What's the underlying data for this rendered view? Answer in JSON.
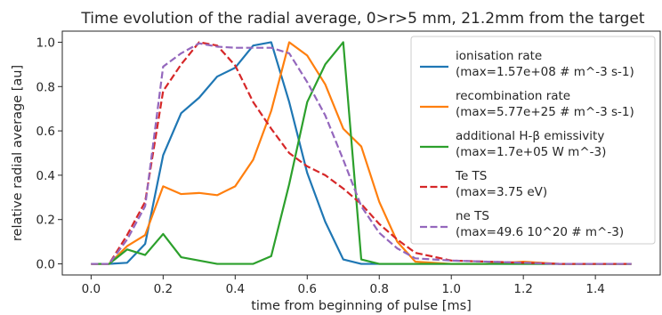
{
  "chart_data": {
    "type": "line",
    "title": "Time evolution of the radial average, 0>r>5 mm, 21.2mm from the target",
    "xlabel": "time from beginning of pulse [ms]",
    "ylabel": "relative radial average [au]",
    "xlim": [
      -0.08,
      1.58
    ],
    "ylim": [
      -0.05,
      1.05
    ],
    "xticks": [
      0.0,
      0.2,
      0.4,
      0.6,
      0.8,
      1.0,
      1.2,
      1.4
    ],
    "xtick_labels": [
      "0.0",
      "0.2",
      "0.4",
      "0.6",
      "0.8",
      "1.0",
      "1.2",
      "1.4"
    ],
    "yticks": [
      0.0,
      0.2,
      0.4,
      0.6,
      0.8,
      1.0
    ],
    "ytick_labels": [
      "0.0",
      "0.2",
      "0.4",
      "0.6",
      "0.8",
      "1.0"
    ],
    "grid": false,
    "legend_placement": "top-right",
    "series": [
      {
        "name": "ionisation rate",
        "name_line2": "(max=1.57e+08 # m^-3 s-1)",
        "color": "#1f77b4",
        "dash": "solid",
        "x": [
          0,
          0.05,
          0.1,
          0.15,
          0.2,
          0.25,
          0.3,
          0.35,
          0.4,
          0.45,
          0.5,
          0.55,
          0.6,
          0.65,
          0.7,
          0.75,
          0.8,
          0.9,
          1.0,
          1.1,
          1.2,
          1.3,
          1.4,
          1.5
        ],
        "y": [
          0,
          0,
          0.005,
          0.09,
          0.49,
          0.68,
          0.75,
          0.845,
          0.885,
          0.985,
          1.0,
          0.73,
          0.41,
          0.19,
          0.02,
          0,
          0,
          0,
          0,
          0,
          0,
          0,
          0,
          0
        ]
      },
      {
        "name": "recombination rate",
        "name_line2": "(max=5.77e+25 # m^-3 s-1)",
        "color": "#ff7f0e",
        "dash": "solid",
        "x": [
          0,
          0.05,
          0.1,
          0.15,
          0.2,
          0.25,
          0.3,
          0.35,
          0.4,
          0.45,
          0.5,
          0.55,
          0.6,
          0.65,
          0.7,
          0.75,
          0.8,
          0.85,
          0.9,
          1.0,
          1.1,
          1.2,
          1.3,
          1.4,
          1.5
        ],
        "y": [
          0,
          0,
          0.08,
          0.13,
          0.35,
          0.315,
          0.32,
          0.31,
          0.35,
          0.47,
          0.69,
          1.0,
          0.94,
          0.81,
          0.61,
          0.53,
          0.28,
          0.1,
          0.01,
          0,
          0,
          0.01,
          0,
          0,
          0
        ]
      },
      {
        "name": "additional H-β emissivity",
        "name_line2": "(max=1.7e+05 W m^-3)",
        "color": "#2ca02c",
        "dash": "solid",
        "x": [
          0,
          0.05,
          0.1,
          0.15,
          0.2,
          0.25,
          0.3,
          0.35,
          0.4,
          0.45,
          0.5,
          0.55,
          0.6,
          0.65,
          0.7,
          0.75,
          0.8,
          0.9,
          1.0,
          1.1,
          1.2,
          1.3,
          1.4,
          1.5
        ],
        "y": [
          0,
          0,
          0.065,
          0.04,
          0.135,
          0.03,
          0.015,
          0,
          0,
          0,
          0.035,
          0.36,
          0.73,
          0.9,
          1.0,
          0.02,
          0,
          0,
          0,
          0,
          0,
          0,
          0,
          0
        ]
      },
      {
        "name": "Te TS",
        "name_line2": "(max=3.75 eV)",
        "color": "#d62728",
        "dash": "dashed",
        "x": [
          0,
          0.05,
          0.1,
          0.15,
          0.2,
          0.25,
          0.3,
          0.35,
          0.4,
          0.45,
          0.5,
          0.55,
          0.6,
          0.65,
          0.7,
          0.75,
          0.8,
          0.85,
          0.9,
          1.0,
          1.1,
          1.2,
          1.3,
          1.4,
          1.5
        ],
        "y": [
          0,
          0,
          0.13,
          0.28,
          0.78,
          0.9,
          1.0,
          0.985,
          0.895,
          0.73,
          0.61,
          0.5,
          0.44,
          0.4,
          0.34,
          0.27,
          0.18,
          0.11,
          0.05,
          0.015,
          0.01,
          0.005,
          0,
          0,
          0
        ]
      },
      {
        "name": "ne TS",
        "name_line2": "(max=49.6 10^20 # m^-3)",
        "color": "#9467bd",
        "dash": "dashed",
        "x": [
          0,
          0.05,
          0.1,
          0.15,
          0.2,
          0.25,
          0.3,
          0.35,
          0.4,
          0.45,
          0.5,
          0.55,
          0.6,
          0.65,
          0.7,
          0.75,
          0.8,
          0.85,
          0.9,
          1.0,
          1.1,
          1.2,
          1.3,
          1.4,
          1.5
        ],
        "y": [
          0,
          0,
          0.11,
          0.26,
          0.89,
          0.95,
          0.995,
          0.98,
          0.975,
          0.975,
          0.975,
          0.95,
          0.82,
          0.67,
          0.47,
          0.26,
          0.14,
          0.07,
          0.025,
          0.015,
          0.01,
          0.005,
          0,
          0,
          0
        ]
      }
    ]
  }
}
